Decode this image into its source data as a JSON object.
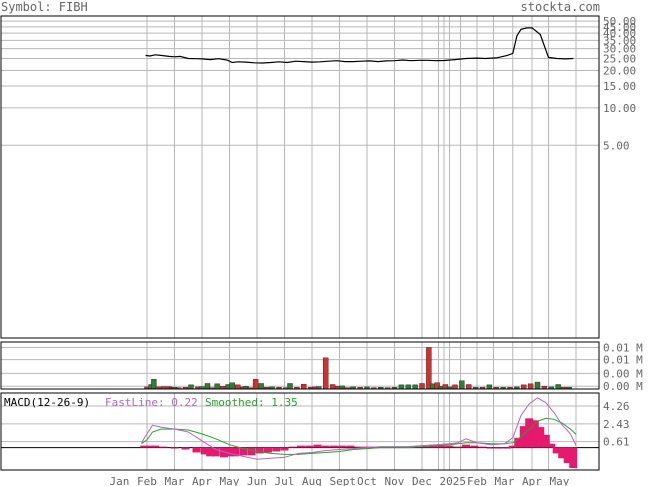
{
  "header": {
    "symbol": "Symbol: FIBH",
    "site": "stockta.com"
  },
  "colors": {
    "grid": "#b8b8b8",
    "axis": "#555555",
    "text": "#666666",
    "price": "#000000",
    "vol_up": "#2e7d32",
    "vol_down": "#d32f2f",
    "hist": "#e6196e",
    "fast": "#b366c7",
    "smooth": "#2aa02a",
    "frame": "#000000"
  },
  "chart_data": [
    {
      "type": "line",
      "panel": "price",
      "scale": "log",
      "y_ticks": [
        "50.00",
        "45.00",
        "40.00",
        "35.00",
        "30.00",
        "25.00",
        "20.00",
        "15.00",
        "10.00",
        "5.00"
      ],
      "y_tick_values": [
        50,
        45,
        40,
        35,
        30,
        25,
        20,
        15,
        10,
        5
      ],
      "x_labels": [
        "Jan",
        "Feb",
        "Mar",
        "Apr",
        "May",
        "Jun",
        "Jul",
        "Aug",
        "Sept",
        "Oct",
        "Nov",
        "Dec",
        "Feb",
        "2025",
        "Mar",
        "Apr",
        "May"
      ],
      "x_label_months": [
        0,
        1,
        2,
        3,
        4,
        5,
        6,
        7,
        8,
        9,
        10,
        11,
        13,
        12,
        14,
        15,
        16
      ],
      "values": [
        [
          0.95,
          26.5
        ],
        [
          1.1,
          26.2
        ],
        [
          1.3,
          26.8
        ],
        [
          1.5,
          26.5
        ],
        [
          1.8,
          26.0
        ],
        [
          2.0,
          25.8
        ],
        [
          2.2,
          26.0
        ],
        [
          2.5,
          25.0
        ],
        [
          2.8,
          24.9
        ],
        [
          3.0,
          24.8
        ],
        [
          3.3,
          24.5
        ],
        [
          3.6,
          24.9
        ],
        [
          3.9,
          24.3
        ],
        [
          4.1,
          23.2
        ],
        [
          4.3,
          23.5
        ],
        [
          4.6,
          23.4
        ],
        [
          4.9,
          23.1
        ],
        [
          5.2,
          23.0
        ],
        [
          5.5,
          23.2
        ],
        [
          5.8,
          23.5
        ],
        [
          6.1,
          23.2
        ],
        [
          6.4,
          23.8
        ],
        [
          6.7,
          23.6
        ],
        [
          7.0,
          23.4
        ],
        [
          7.3,
          23.5
        ],
        [
          7.6,
          23.8
        ],
        [
          7.9,
          24.0
        ],
        [
          8.2,
          23.6
        ],
        [
          8.5,
          23.6
        ],
        [
          8.8,
          23.8
        ],
        [
          9.1,
          23.9
        ],
        [
          9.4,
          23.6
        ],
        [
          9.7,
          23.9
        ],
        [
          10.0,
          24.0
        ],
        [
          10.3,
          24.3
        ],
        [
          10.6,
          24.0
        ],
        [
          10.9,
          24.2
        ],
        [
          11.2,
          24.2
        ],
        [
          11.5,
          24.0
        ],
        [
          11.8,
          24.1
        ],
        [
          12.2,
          24.5
        ],
        [
          12.6,
          25.0
        ],
        [
          13.0,
          25.2
        ],
        [
          13.3,
          25.0
        ],
        [
          13.7,
          25.3
        ],
        [
          14.1,
          26.5
        ],
        [
          14.3,
          27.5
        ],
        [
          14.45,
          38.0
        ],
        [
          14.6,
          43.0
        ],
        [
          14.8,
          44.0
        ],
        [
          15.0,
          44.2
        ],
        [
          15.3,
          39.0
        ],
        [
          15.6,
          25.5
        ],
        [
          15.9,
          25.0
        ],
        [
          16.2,
          24.8
        ],
        [
          16.5,
          25.0
        ]
      ]
    },
    {
      "type": "bar",
      "panel": "volume",
      "y_ticks": [
        "0.01 M",
        "0.01 M",
        "0.00 M",
        "0.00 M"
      ],
      "x": [
        1.0,
        1.15,
        1.25,
        1.4,
        1.6,
        1.8,
        1.9,
        2.0,
        2.15,
        2.4,
        2.6,
        2.85,
        3.0,
        3.2,
        3.35,
        3.55,
        3.75,
        3.95,
        4.1,
        4.3,
        4.5,
        4.6,
        4.75,
        4.95,
        5.15,
        5.35,
        5.55,
        5.8,
        6.05,
        6.2,
        6.45,
        6.7,
        6.95,
        7.1,
        7.25,
        7.5,
        7.75,
        7.95,
        8.1,
        8.3,
        8.5,
        8.75,
        9.0,
        9.25,
        9.5,
        9.75,
        10.0,
        10.25,
        10.5,
        10.75,
        11.0,
        11.25,
        11.4,
        11.55,
        11.7,
        11.85,
        12.0,
        12.2,
        12.45,
        12.7,
        12.95,
        13.2,
        13.45,
        13.7,
        13.95,
        14.2,
        14.45,
        14.7,
        14.95,
        15.2,
        15.45,
        15.7,
        15.95,
        16.15,
        16.35
      ],
      "values": [
        0.0006,
        0.0013,
        0.0028,
        0.0006,
        0.0007,
        0.0007,
        0.0005,
        0.0005,
        0.0004,
        0.0005,
        0.0012,
        0.0006,
        0.0007,
        0.0016,
        0.0004,
        0.0015,
        0.0008,
        0.0013,
        0.0018,
        0.0012,
        0.0006,
        0.0008,
        0.0004,
        0.0028,
        0.0016,
        0.0005,
        0.0006,
        0.0005,
        0.0004,
        0.0016,
        0.0005,
        0.0014,
        0.0005,
        0.0006,
        0.0007,
        0.009,
        0.0013,
        0.0008,
        0.0009,
        0.0004,
        0.0006,
        0.0005,
        0.0006,
        0.0004,
        0.0005,
        0.0004,
        0.0005,
        0.0012,
        0.0012,
        0.0012,
        0.0016,
        0.012,
        0.0015,
        0.0018,
        0.0008,
        0.0013,
        0.0006,
        0.0012,
        0.0024,
        0.0013,
        0.0005,
        0.0005,
        0.0012,
        0.0005,
        0.0005,
        0.0005,
        0.0006,
        0.0012,
        0.0015,
        0.002,
        0.0008,
        0.0006,
        0.0013,
        0.0005,
        0.0005
      ],
      "up": [
        false,
        true,
        true,
        false,
        false,
        false,
        false,
        true,
        false,
        false,
        true,
        false,
        true,
        true,
        false,
        true,
        false,
        true,
        true,
        false,
        false,
        true,
        false,
        false,
        true,
        false,
        true,
        false,
        false,
        true,
        false,
        false,
        false,
        false,
        true,
        false,
        false,
        false,
        true,
        false,
        true,
        false,
        true,
        false,
        true,
        false,
        true,
        true,
        true,
        true,
        false,
        false,
        true,
        false,
        true,
        false,
        true,
        false,
        true,
        false,
        true,
        false,
        true,
        false,
        true,
        false,
        true,
        false,
        false,
        true,
        false,
        true,
        true,
        false,
        true
      ]
    },
    {
      "type": "line",
      "panel": "macd",
      "title": "MACD(12-26-9)",
      "fastline_label": "FastLine: 0.22",
      "smoothed_label": "Smoothed: 1.35",
      "y_ticks": [
        "4.26",
        "2.43",
        "0.61"
      ],
      "y_tick_values": [
        4.26,
        2.43,
        0.61
      ],
      "x": [
        0.8,
        1.0,
        1.2,
        1.5,
        2.0,
        2.5,
        3.0,
        3.5,
        4.0,
        4.5,
        5.0,
        5.5,
        6.0,
        6.5,
        7.0,
        7.5,
        8.0,
        8.5,
        9.0,
        9.5,
        10.0,
        10.5,
        11.0,
        11.5,
        12.0,
        12.3,
        12.6,
        13.0,
        13.5,
        14.0,
        14.3,
        14.6,
        14.9,
        15.2,
        15.5,
        15.8,
        16.1,
        16.4,
        16.6
      ],
      "fast": [
        0.5,
        1.4,
        2.3,
        2.1,
        1.9,
        1.6,
        0.7,
        -0.2,
        -0.6,
        -0.9,
        -1.2,
        -1.1,
        -1.0,
        -0.6,
        -0.5,
        -0.3,
        -0.2,
        -0.1,
        0.0,
        0.1,
        0.1,
        0.1,
        0.2,
        0.3,
        0.4,
        0.5,
        0.9,
        0.5,
        0.3,
        0.4,
        1.0,
        3.3,
        4.5,
        5.1,
        4.6,
        3.6,
        2.3,
        1.4,
        0.22
      ],
      "smooth": [
        0.4,
        0.8,
        1.6,
        1.9,
        1.9,
        1.8,
        1.4,
        0.9,
        0.3,
        -0.1,
        -0.4,
        -0.6,
        -0.7,
        -0.7,
        -0.6,
        -0.5,
        -0.4,
        -0.2,
        -0.1,
        0.0,
        0.0,
        0.0,
        0.1,
        0.2,
        0.3,
        0.4,
        0.5,
        0.5,
        0.4,
        0.4,
        0.5,
        1.1,
        1.9,
        2.7,
        3.0,
        2.9,
        2.5,
        1.9,
        1.35
      ],
      "hist_x": [
        0.9,
        1.1,
        1.3,
        1.6,
        2.0,
        2.4,
        2.8,
        3.1,
        3.3,
        3.5,
        3.8,
        4.0,
        4.2,
        4.5,
        4.8,
        5.1,
        5.4,
        5.7,
        6.0,
        6.3,
        6.6,
        6.9,
        7.2,
        7.5,
        7.8,
        8.1,
        8.4,
        8.7,
        9.0,
        9.3,
        9.6,
        9.9,
        10.2,
        10.5,
        10.8,
        11.1,
        11.4,
        11.7,
        12.0,
        12.3,
        12.6,
        12.9,
        13.2,
        13.5,
        13.8,
        14.1,
        14.3,
        14.5,
        14.7,
        14.9,
        15.1,
        15.3,
        15.5,
        15.7,
        15.9,
        16.1,
        16.3,
        16.5
      ],
      "hist": [
        0.2,
        0.2,
        0.2,
        0.1,
        0.0,
        -0.2,
        -0.5,
        -0.7,
        -0.9,
        -0.9,
        -1.0,
        -0.9,
        -0.9,
        -0.8,
        -0.8,
        -0.6,
        -0.5,
        -0.4,
        -0.3,
        0.1,
        0.2,
        0.2,
        0.3,
        0.2,
        0.2,
        0.2,
        0.2,
        0.1,
        0.1,
        0.1,
        0.1,
        0.1,
        0.1,
        0.1,
        0.1,
        0.1,
        0.2,
        0.2,
        0.2,
        0.1,
        0.3,
        0.2,
        0.1,
        0.0,
        0.0,
        0.0,
        0.2,
        1.0,
        2.2,
        3.0,
        2.8,
        2.1,
        1.3,
        0.4,
        -0.6,
        -1.1,
        -1.6,
        -2.1
      ]
    }
  ]
}
